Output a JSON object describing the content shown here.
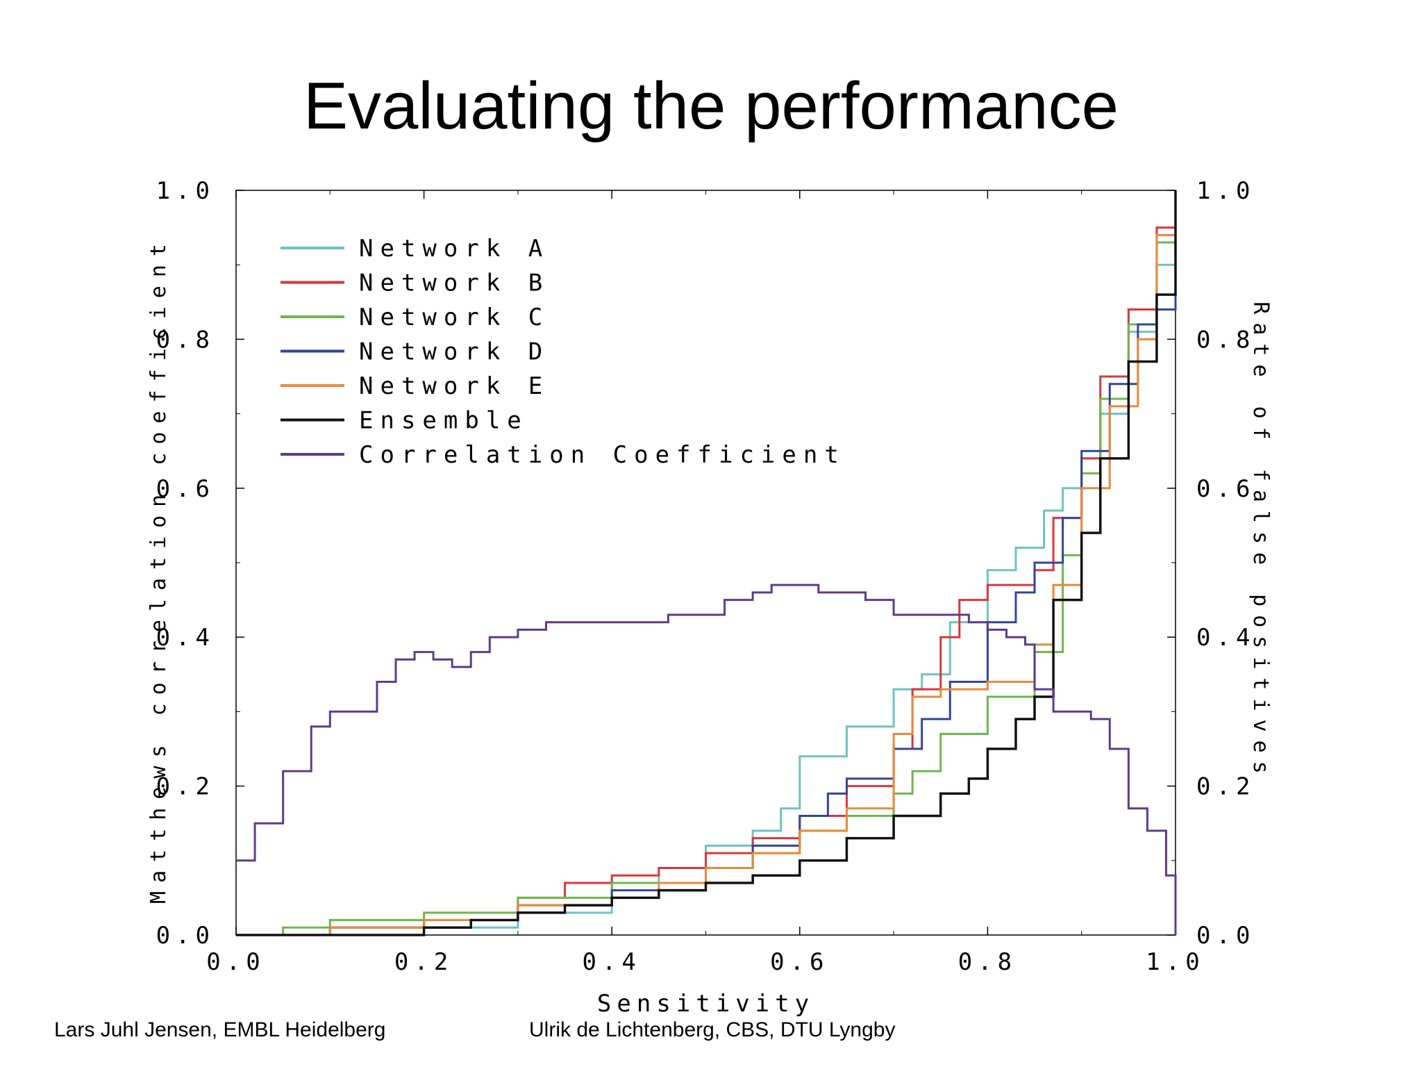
{
  "slide": {
    "title": "Evaluating the performance",
    "footer_left": "Lars Juhl Jensen, EMBL Heidelberg",
    "footer_right": "Ulrik de Lichtenberg, CBS, DTU Lyngby"
  },
  "chart_data": {
    "type": "line",
    "title": "",
    "xlabel": "Sensitivity",
    "ylabel": "Matthews correlation coefficient",
    "y2label": "Rate of false positives",
    "xlim": [
      0,
      1
    ],
    "ylim": [
      0,
      1
    ],
    "y2lim": [
      0,
      1
    ],
    "x_ticks": [
      "0.0",
      "0.2",
      "0.4",
      "0.6",
      "0.8",
      "1.0"
    ],
    "y_ticks": [
      "0.0",
      "0.2",
      "0.4",
      "0.6",
      "0.8",
      "1.0"
    ],
    "y2_ticks": [
      "0.0",
      "0.2",
      "0.4",
      "0.6",
      "0.8",
      "1.0"
    ],
    "grid": false,
    "legend_position": "top-left",
    "series": [
      {
        "name": "Network A",
        "color": "#6cc4c0",
        "axis": "right",
        "x": [
          0,
          0.1,
          0.2,
          0.3,
          0.4,
          0.45,
          0.5,
          0.55,
          0.58,
          0.6,
          0.65,
          0.7,
          0.73,
          0.76,
          0.8,
          0.83,
          0.86,
          0.88,
          0.9,
          0.92,
          0.95,
          0.98,
          1.0
        ],
        "y": [
          0,
          0.0,
          0.01,
          0.03,
          0.07,
          0.09,
          0.12,
          0.14,
          0.17,
          0.24,
          0.28,
          0.33,
          0.35,
          0.42,
          0.49,
          0.52,
          0.57,
          0.6,
          0.64,
          0.7,
          0.81,
          0.9,
          0.95
        ]
      },
      {
        "name": "Network B",
        "color": "#d9363b",
        "axis": "right",
        "x": [
          0,
          0.1,
          0.2,
          0.3,
          0.35,
          0.4,
          0.45,
          0.5,
          0.55,
          0.6,
          0.65,
          0.7,
          0.72,
          0.75,
          0.77,
          0.8,
          0.85,
          0.87,
          0.9,
          0.92,
          0.95,
          0.98,
          1.0
        ],
        "y": [
          0,
          0.01,
          0.02,
          0.05,
          0.07,
          0.08,
          0.09,
          0.11,
          0.13,
          0.16,
          0.2,
          0.25,
          0.33,
          0.4,
          0.45,
          0.47,
          0.49,
          0.56,
          0.64,
          0.75,
          0.84,
          0.95,
          0.96
        ]
      },
      {
        "name": "Network C",
        "color": "#6cb84a",
        "axis": "right",
        "x": [
          0,
          0.05,
          0.1,
          0.2,
          0.3,
          0.4,
          0.5,
          0.55,
          0.6,
          0.65,
          0.7,
          0.72,
          0.75,
          0.8,
          0.85,
          0.88,
          0.9,
          0.92,
          0.95,
          0.98,
          1.0
        ],
        "y": [
          0,
          0.01,
          0.02,
          0.03,
          0.05,
          0.07,
          0.09,
          0.11,
          0.14,
          0.16,
          0.19,
          0.22,
          0.27,
          0.32,
          0.38,
          0.51,
          0.62,
          0.72,
          0.82,
          0.93,
          0.98
        ]
      },
      {
        "name": "Network D",
        "color": "#33449a",
        "axis": "right",
        "x": [
          0,
          0.1,
          0.2,
          0.3,
          0.4,
          0.5,
          0.55,
          0.6,
          0.63,
          0.65,
          0.7,
          0.73,
          0.76,
          0.8,
          0.83,
          0.85,
          0.88,
          0.9,
          0.93,
          0.96,
          0.98,
          1.0
        ],
        "y": [
          0,
          0.01,
          0.02,
          0.04,
          0.06,
          0.09,
          0.12,
          0.16,
          0.19,
          0.21,
          0.25,
          0.29,
          0.34,
          0.42,
          0.46,
          0.5,
          0.56,
          0.65,
          0.74,
          0.82,
          0.84,
          0.94
        ]
      },
      {
        "name": "Network E",
        "color": "#e88a3a",
        "axis": "right",
        "x": [
          0,
          0.1,
          0.2,
          0.3,
          0.4,
          0.45,
          0.5,
          0.55,
          0.6,
          0.65,
          0.7,
          0.72,
          0.75,
          0.8,
          0.85,
          0.87,
          0.9,
          0.93,
          0.96,
          0.98,
          1.0
        ],
        "y": [
          0,
          0.01,
          0.02,
          0.04,
          0.05,
          0.07,
          0.09,
          0.11,
          0.14,
          0.17,
          0.27,
          0.32,
          0.33,
          0.34,
          0.39,
          0.47,
          0.6,
          0.71,
          0.8,
          0.94,
          0.95
        ]
      },
      {
        "name": "Ensemble",
        "color": "#111111",
        "axis": "right",
        "x": [
          0,
          0.1,
          0.2,
          0.25,
          0.3,
          0.35,
          0.4,
          0.45,
          0.5,
          0.55,
          0.6,
          0.65,
          0.7,
          0.75,
          0.78,
          0.8,
          0.83,
          0.85,
          0.87,
          0.9,
          0.92,
          0.95,
          0.98,
          1.0
        ],
        "y": [
          0,
          0.0,
          0.01,
          0.02,
          0.03,
          0.04,
          0.05,
          0.06,
          0.07,
          0.08,
          0.1,
          0.13,
          0.16,
          0.19,
          0.21,
          0.25,
          0.29,
          0.32,
          0.45,
          0.54,
          0.64,
          0.77,
          0.86,
          1.0
        ]
      },
      {
        "name": "Correlation Coefficient",
        "color": "#5e3b8c",
        "axis": "left",
        "x": [
          0.0,
          0.02,
          0.05,
          0.08,
          0.1,
          0.12,
          0.15,
          0.17,
          0.19,
          0.21,
          0.23,
          0.25,
          0.27,
          0.3,
          0.33,
          0.36,
          0.4,
          0.43,
          0.46,
          0.49,
          0.52,
          0.55,
          0.57,
          0.6,
          0.62,
          0.65,
          0.67,
          0.7,
          0.73,
          0.76,
          0.78,
          0.8,
          0.82,
          0.84,
          0.85,
          0.87,
          0.89,
          0.91,
          0.93,
          0.95,
          0.97,
          0.99,
          1.0
        ],
        "y": [
          0.1,
          0.15,
          0.22,
          0.28,
          0.3,
          0.3,
          0.34,
          0.37,
          0.38,
          0.37,
          0.36,
          0.38,
          0.4,
          0.41,
          0.42,
          0.42,
          0.42,
          0.42,
          0.43,
          0.43,
          0.45,
          0.46,
          0.47,
          0.47,
          0.46,
          0.46,
          0.45,
          0.43,
          0.43,
          0.43,
          0.42,
          0.41,
          0.4,
          0.39,
          0.33,
          0.3,
          0.3,
          0.29,
          0.25,
          0.17,
          0.14,
          0.08,
          0.0
        ]
      }
    ]
  }
}
